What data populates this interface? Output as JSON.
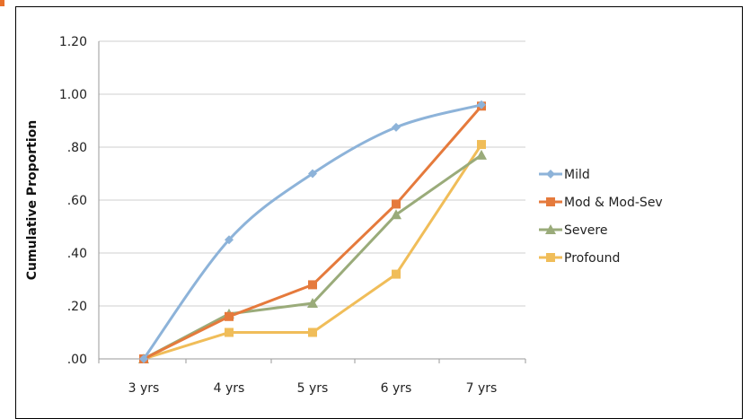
{
  "chart_data": {
    "type": "line",
    "title": "",
    "xlabel": "",
    "ylabel": "Cumulative Proportion",
    "categories": [
      "3 yrs",
      "4 yrs",
      "5 yrs",
      "6 yrs",
      "7 yrs"
    ],
    "ylim": [
      0,
      1.2
    ],
    "yticks": [
      0,
      0.2,
      0.4,
      0.6,
      0.8,
      1.0,
      1.2
    ],
    "ytick_labels": [
      ".00",
      ".20",
      ".40",
      ".60",
      ".80",
      "1.00",
      "1.20"
    ],
    "grid": true,
    "legend_position": "right",
    "series": [
      {
        "name": "Mild",
        "values": [
          0.0,
          0.45,
          0.7,
          0.875,
          0.96
        ],
        "color": "#8db3d9",
        "marker": "diamond"
      },
      {
        "name": "Mod & Mod-Sev",
        "values": [
          0.0,
          0.16,
          0.28,
          0.585,
          0.955
        ],
        "color": "#e57a3c",
        "marker": "square"
      },
      {
        "name": "Severe",
        "values": [
          0.0,
          0.17,
          0.21,
          0.545,
          0.77
        ],
        "color": "#9aab7a",
        "marker": "triangle"
      },
      {
        "name": "Profound",
        "values": [
          0.0,
          0.1,
          0.1,
          0.32,
          0.81
        ],
        "color": "#f0bd59",
        "marker": "square"
      }
    ]
  }
}
